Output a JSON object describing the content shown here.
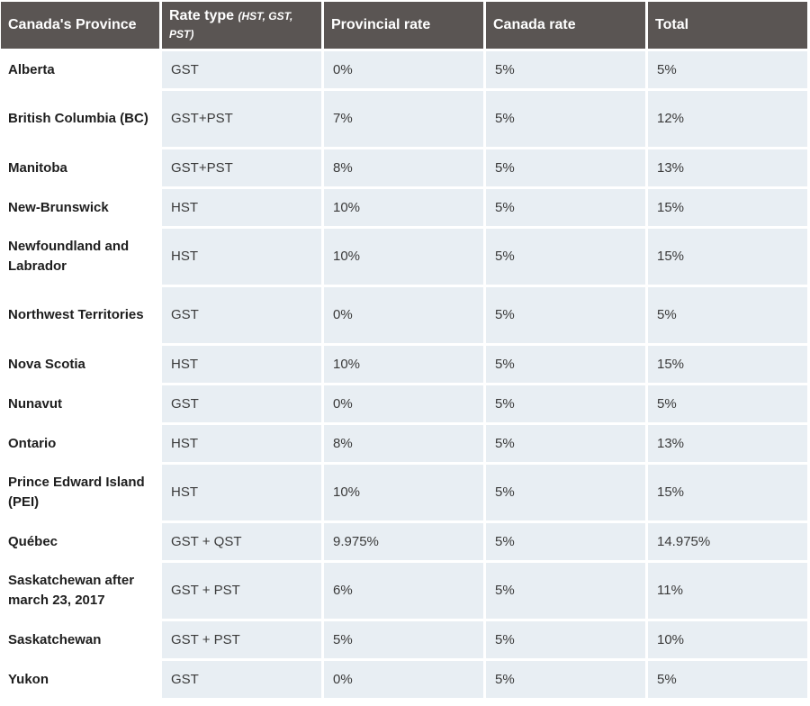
{
  "table": {
    "headers": {
      "province": "Canada's Province",
      "rate_type": "Rate type",
      "rate_type_note": "(HST, GST, PST)",
      "provincial_rate": "Provincial rate",
      "canada_rate": "Canada rate",
      "total": "Total"
    },
    "rows": [
      {
        "province": "Alberta",
        "rate_type": "GST",
        "provincial_rate": "0%",
        "canada_rate": "5%",
        "total": "5%"
      },
      {
        "province": "British Columbia (BC)",
        "rate_type": "GST+PST",
        "provincial_rate": "7%",
        "canada_rate": "5%",
        "total": "12%"
      },
      {
        "province": "Manitoba",
        "rate_type": "GST+PST",
        "provincial_rate": "8%",
        "canada_rate": "5%",
        "total": "13%"
      },
      {
        "province": "New-Brunswick",
        "rate_type": "HST",
        "provincial_rate": "10%",
        "canada_rate": "5%",
        "total": "15%"
      },
      {
        "province": "Newfoundland and Labrador",
        "rate_type": "HST",
        "provincial_rate": "10%",
        "canada_rate": "5%",
        "total": "15%"
      },
      {
        "province": "Northwest Territories",
        "rate_type": "GST",
        "provincial_rate": "0%",
        "canada_rate": "5%",
        "total": "5%"
      },
      {
        "province": "Nova Scotia",
        "rate_type": "HST",
        "provincial_rate": "10%",
        "canada_rate": "5%",
        "total": "15%"
      },
      {
        "province": "Nunavut",
        "rate_type": "GST",
        "provincial_rate": "0%",
        "canada_rate": "5%",
        "total": "5%"
      },
      {
        "province": "Ontario",
        "rate_type": "HST",
        "provincial_rate": "8%",
        "canada_rate": "5%",
        "total": "13%"
      },
      {
        "province": "Prince Edward Island (PEI)",
        "rate_type": "HST",
        "provincial_rate": "10%",
        "canada_rate": "5%",
        "total": "15%"
      },
      {
        "province": "Québec",
        "rate_type": "GST + QST",
        "provincial_rate": "9.975%",
        "canada_rate": "5%",
        "total": "14.975%"
      },
      {
        "province": "Saskatchewan after march 23, 2017",
        "rate_type": "GST + PST",
        "provincial_rate": "6%",
        "canada_rate": "5%",
        "total": "11%"
      },
      {
        "province": "Saskatchewan",
        "rate_type": "GST + PST",
        "provincial_rate": "5%",
        "canada_rate": "5%",
        "total": "10%"
      },
      {
        "province": "Yukon",
        "rate_type": "GST",
        "provincial_rate": "0%",
        "canada_rate": "5%",
        "total": "5%"
      }
    ]
  },
  "colors": {
    "header_bg": "#5a5553",
    "header_text": "#ffffff",
    "value_cell_bg": "#e8eef3",
    "province_cell_bg": "#ffffff"
  }
}
